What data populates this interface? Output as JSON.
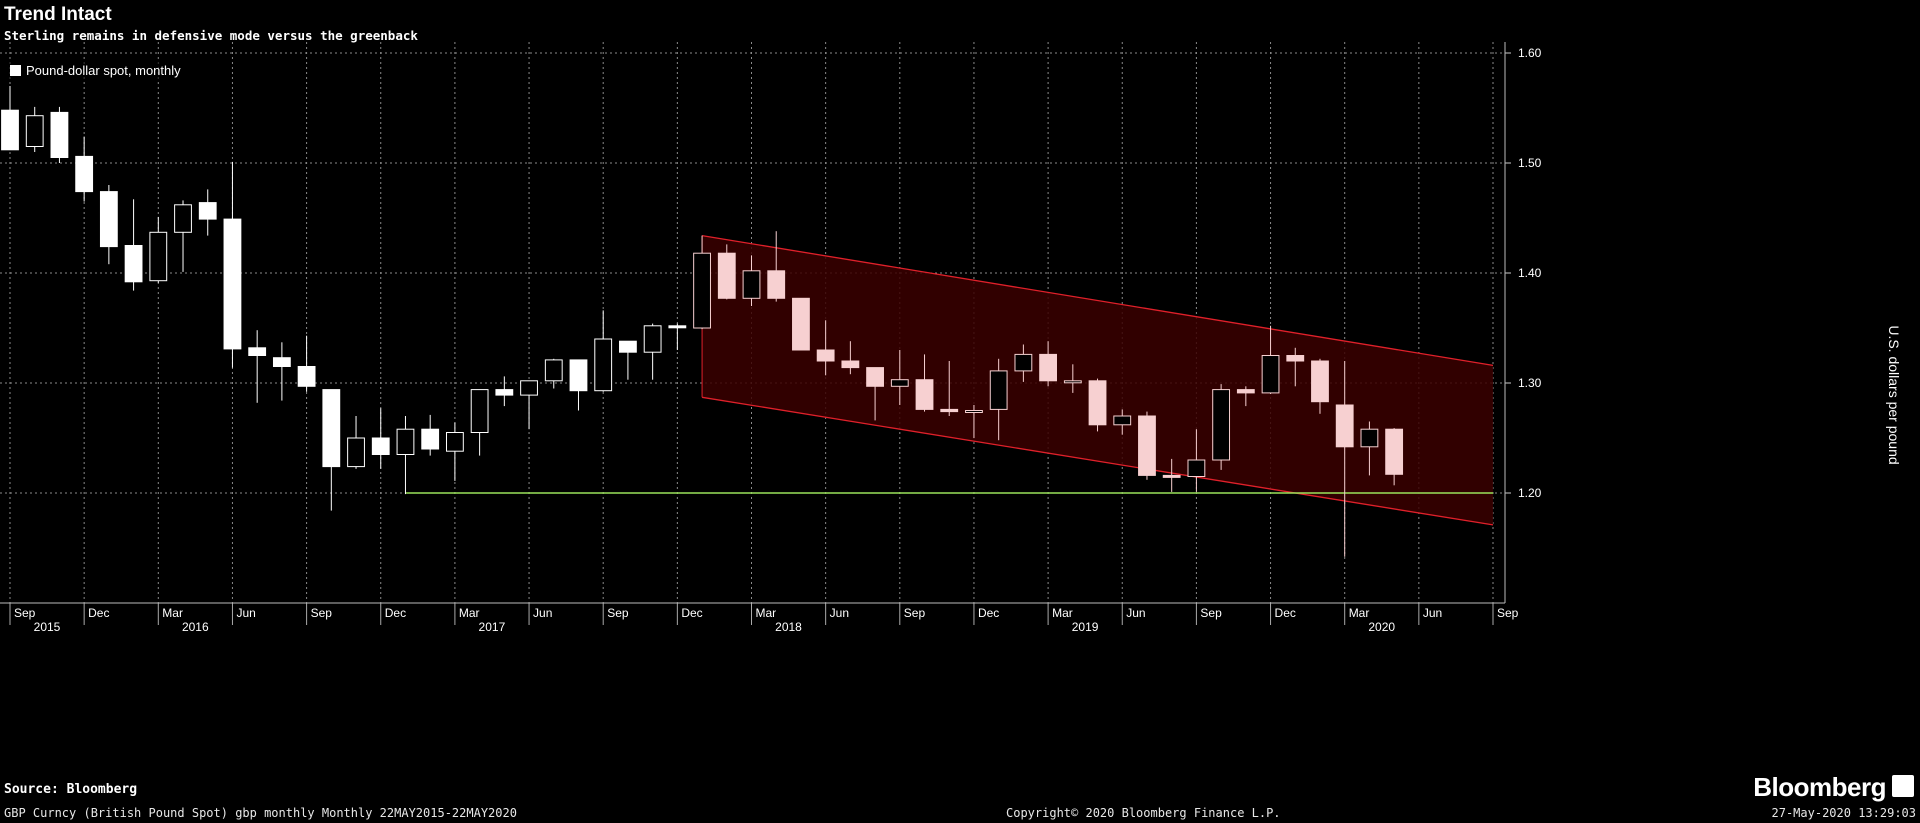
{
  "header": {
    "title": "Trend Intact",
    "subtitle": "Sterling remains in defensive mode versus the greenback"
  },
  "footer": {
    "source": "Source: Bloomberg",
    "ticker": "GBP Curncy (British Pound Spot) gbp monthly  Monthly 22MAY2015-22MAY2020",
    "copyright": "Copyright© 2020 Bloomberg Finance L.P.",
    "timestamp": "27-May-2020 13:29:03",
    "brand": "Bloomberg"
  },
  "colors": {
    "background": "#000000",
    "candle_before_2018": "#ffffff",
    "candle_after_2018": "#f7d0d1",
    "channel_fill": "#3a0000",
    "channel_line": "#e0202a",
    "support_line": "#9be35a",
    "grid": "#8a8a8a"
  },
  "chart_data": {
    "type": "candlestick",
    "title": "Trend Intact",
    "subtitle": "Sterling remains in defensive mode versus the greenback",
    "legend": "Pound-dollar spot, monthly",
    "legend_position": "top-left",
    "ylabel": "U.S. dollars per pound",
    "y_side": "right",
    "ylim": [
      1.1,
      1.61
    ],
    "yticks": [
      1.2,
      1.3,
      1.4,
      1.5,
      1.6
    ],
    "ytick_labels": [
      "1.20",
      "1.30",
      "1.40",
      "1.50",
      "1.60"
    ],
    "x_range": [
      "2015-09",
      "2020-09"
    ],
    "xticks": [
      {
        "label": "Sep",
        "year": "2015",
        "date": "2015-09"
      },
      {
        "label": "Dec",
        "year": "",
        "date": "2015-12"
      },
      {
        "label": "Mar",
        "year": "2016",
        "date": "2016-03"
      },
      {
        "label": "Jun",
        "year": "",
        "date": "2016-06"
      },
      {
        "label": "Sep",
        "year": "",
        "date": "2016-09"
      },
      {
        "label": "Dec",
        "year": "",
        "date": "2016-12"
      },
      {
        "label": "Mar",
        "year": "2017",
        "date": "2017-03"
      },
      {
        "label": "Jun",
        "year": "",
        "date": "2017-06"
      },
      {
        "label": "Sep",
        "year": "",
        "date": "2017-09"
      },
      {
        "label": "Dec",
        "year": "",
        "date": "2017-12"
      },
      {
        "label": "Mar",
        "year": "2018",
        "date": "2018-03"
      },
      {
        "label": "Jun",
        "year": "",
        "date": "2018-06"
      },
      {
        "label": "Sep",
        "year": "",
        "date": "2018-09"
      },
      {
        "label": "Dec",
        "year": "",
        "date": "2018-12"
      },
      {
        "label": "Mar",
        "year": "2019",
        "date": "2019-03"
      },
      {
        "label": "Jun",
        "year": "",
        "date": "2019-06"
      },
      {
        "label": "Sep",
        "year": "",
        "date": "2019-09"
      },
      {
        "label": "Dec",
        "year": "",
        "date": "2019-12"
      },
      {
        "label": "Mar",
        "year": "2020",
        "date": "2020-03"
      },
      {
        "label": "Jun",
        "year": "",
        "date": "2020-06"
      },
      {
        "label": "Sep",
        "year": "",
        "date": "2020-09"
      }
    ],
    "grid": true,
    "candles": [
      {
        "date": "2015-09",
        "open": 1.548,
        "high": 1.57,
        "low": 1.512,
        "close": 1.512
      },
      {
        "date": "2015-10",
        "open": 1.515,
        "high": 1.551,
        "low": 1.51,
        "close": 1.543
      },
      {
        "date": "2015-11",
        "open": 1.546,
        "high": 1.551,
        "low": 1.5,
        "close": 1.505
      },
      {
        "date": "2015-12",
        "open": 1.506,
        "high": 1.524,
        "low": 1.465,
        "close": 1.474
      },
      {
        "date": "2016-01",
        "open": 1.474,
        "high": 1.48,
        "low": 1.408,
        "close": 1.424
      },
      {
        "date": "2016-02",
        "open": 1.425,
        "high": 1.467,
        "low": 1.384,
        "close": 1.392
      },
      {
        "date": "2016-03",
        "open": 1.393,
        "high": 1.451,
        "low": 1.391,
        "close": 1.437
      },
      {
        "date": "2016-04",
        "open": 1.437,
        "high": 1.466,
        "low": 1.401,
        "close": 1.462
      },
      {
        "date": "2016-05",
        "open": 1.464,
        "high": 1.476,
        "low": 1.434,
        "close": 1.449
      },
      {
        "date": "2016-06",
        "open": 1.449,
        "high": 1.501,
        "low": 1.314,
        "close": 1.331
      },
      {
        "date": "2016-07",
        "open": 1.332,
        "high": 1.348,
        "low": 1.282,
        "close": 1.325
      },
      {
        "date": "2016-08",
        "open": 1.323,
        "high": 1.337,
        "low": 1.284,
        "close": 1.315
      },
      {
        "date": "2016-09",
        "open": 1.315,
        "high": 1.343,
        "low": 1.292,
        "close": 1.297
      },
      {
        "date": "2016-10",
        "open": 1.294,
        "high": 1.294,
        "low": 1.184,
        "close": 1.224
      },
      {
        "date": "2016-11",
        "open": 1.224,
        "high": 1.27,
        "low": 1.222,
        "close": 1.25
      },
      {
        "date": "2016-12",
        "open": 1.25,
        "high": 1.277,
        "low": 1.222,
        "close": 1.235
      },
      {
        "date": "2017-01",
        "open": 1.235,
        "high": 1.27,
        "low": 1.199,
        "close": 1.258
      },
      {
        "date": "2017-02",
        "open": 1.258,
        "high": 1.271,
        "low": 1.234,
        "close": 1.24
      },
      {
        "date": "2017-03",
        "open": 1.238,
        "high": 1.264,
        "low": 1.211,
        "close": 1.255
      },
      {
        "date": "2017-04",
        "open": 1.255,
        "high": 1.294,
        "low": 1.234,
        "close": 1.294
      },
      {
        "date": "2017-05",
        "open": 1.294,
        "high": 1.306,
        "low": 1.279,
        "close": 1.289
      },
      {
        "date": "2017-06",
        "open": 1.289,
        "high": 1.301,
        "low": 1.258,
        "close": 1.302
      },
      {
        "date": "2017-07",
        "open": 1.302,
        "high": 1.322,
        "low": 1.295,
        "close": 1.321
      },
      {
        "date": "2017-08",
        "open": 1.321,
        "high": 1.321,
        "low": 1.275,
        "close": 1.293
      },
      {
        "date": "2017-09",
        "open": 1.293,
        "high": 1.366,
        "low": 1.292,
        "close": 1.34
      },
      {
        "date": "2017-10",
        "open": 1.338,
        "high": 1.338,
        "low": 1.303,
        "close": 1.328
      },
      {
        "date": "2017-11",
        "open": 1.328,
        "high": 1.354,
        "low": 1.303,
        "close": 1.352
      },
      {
        "date": "2017-12",
        "open": 1.352,
        "high": 1.354,
        "low": 1.33,
        "close": 1.351
      },
      {
        "date": "2018-01",
        "open": 1.35,
        "high": 1.434,
        "low": 1.349,
        "close": 1.418
      },
      {
        "date": "2018-02",
        "open": 1.418,
        "high": 1.426,
        "low": 1.376,
        "close": 1.377
      },
      {
        "date": "2018-03",
        "open": 1.377,
        "high": 1.416,
        "low": 1.37,
        "close": 1.402
      },
      {
        "date": "2018-04",
        "open": 1.402,
        "high": 1.438,
        "low": 1.374,
        "close": 1.377
      },
      {
        "date": "2018-05",
        "open": 1.377,
        "high": 1.377,
        "low": 1.33,
        "close": 1.33
      },
      {
        "date": "2018-06",
        "open": 1.33,
        "high": 1.357,
        "low": 1.307,
        "close": 1.32
      },
      {
        "date": "2018-07",
        "open": 1.32,
        "high": 1.338,
        "low": 1.308,
        "close": 1.314
      },
      {
        "date": "2018-08",
        "open": 1.314,
        "high": 1.314,
        "low": 1.266,
        "close": 1.297
      },
      {
        "date": "2018-09",
        "open": 1.297,
        "high": 1.33,
        "low": 1.28,
        "close": 1.303
      },
      {
        "date": "2018-10",
        "open": 1.303,
        "high": 1.326,
        "low": 1.274,
        "close": 1.276
      },
      {
        "date": "2018-11",
        "open": 1.276,
        "high": 1.32,
        "low": 1.27,
        "close": 1.274
      },
      {
        "date": "2018-12",
        "open": 1.274,
        "high": 1.28,
        "low": 1.25,
        "close": 1.275
      },
      {
        "date": "2019-01",
        "open": 1.276,
        "high": 1.322,
        "low": 1.248,
        "close": 1.311
      },
      {
        "date": "2019-02",
        "open": 1.311,
        "high": 1.335,
        "low": 1.301,
        "close": 1.326
      },
      {
        "date": "2019-03",
        "open": 1.326,
        "high": 1.338,
        "low": 1.297,
        "close": 1.302
      },
      {
        "date": "2019-04",
        "open": 1.302,
        "high": 1.317,
        "low": 1.291,
        "close": 1.302
      },
      {
        "date": "2019-05",
        "open": 1.302,
        "high": 1.304,
        "low": 1.256,
        "close": 1.262
      },
      {
        "date": "2019-06",
        "open": 1.262,
        "high": 1.276,
        "low": 1.253,
        "close": 1.27
      },
      {
        "date": "2019-07",
        "open": 1.27,
        "high": 1.274,
        "low": 1.212,
        "close": 1.216
      },
      {
        "date": "2019-08",
        "open": 1.216,
        "high": 1.231,
        "low": 1.201,
        "close": 1.215
      },
      {
        "date": "2019-09",
        "open": 1.215,
        "high": 1.258,
        "low": 1.201,
        "close": 1.23
      },
      {
        "date": "2019-10",
        "open": 1.23,
        "high": 1.299,
        "low": 1.221,
        "close": 1.294
      },
      {
        "date": "2019-11",
        "open": 1.294,
        "high": 1.297,
        "low": 1.279,
        "close": 1.291
      },
      {
        "date": "2019-12",
        "open": 1.291,
        "high": 1.352,
        "low": 1.29,
        "close": 1.325
      },
      {
        "date": "2020-01",
        "open": 1.325,
        "high": 1.332,
        "low": 1.297,
        "close": 1.32
      },
      {
        "date": "2020-02",
        "open": 1.32,
        "high": 1.322,
        "low": 1.272,
        "close": 1.283
      },
      {
        "date": "2020-03",
        "open": 1.28,
        "high": 1.32,
        "low": 1.142,
        "close": 1.242
      },
      {
        "date": "2020-04",
        "open": 1.242,
        "high": 1.265,
        "low": 1.216,
        "close": 1.258
      },
      {
        "date": "2020-05",
        "open": 1.258,
        "high": 1.259,
        "low": 1.207,
        "close": 1.217
      }
    ],
    "channel": {
      "upper": [
        {
          "date": "2018-01",
          "y": 1.434
        },
        {
          "date": "2020-09",
          "y": 1.316
        }
      ],
      "lower": [
        {
          "date": "2018-01",
          "y": 1.287
        },
        {
          "date": "2020-09",
          "y": 1.171
        }
      ]
    },
    "support_line": {
      "y": 1.2,
      "from": "2017-01",
      "to": "2020-09"
    }
  }
}
